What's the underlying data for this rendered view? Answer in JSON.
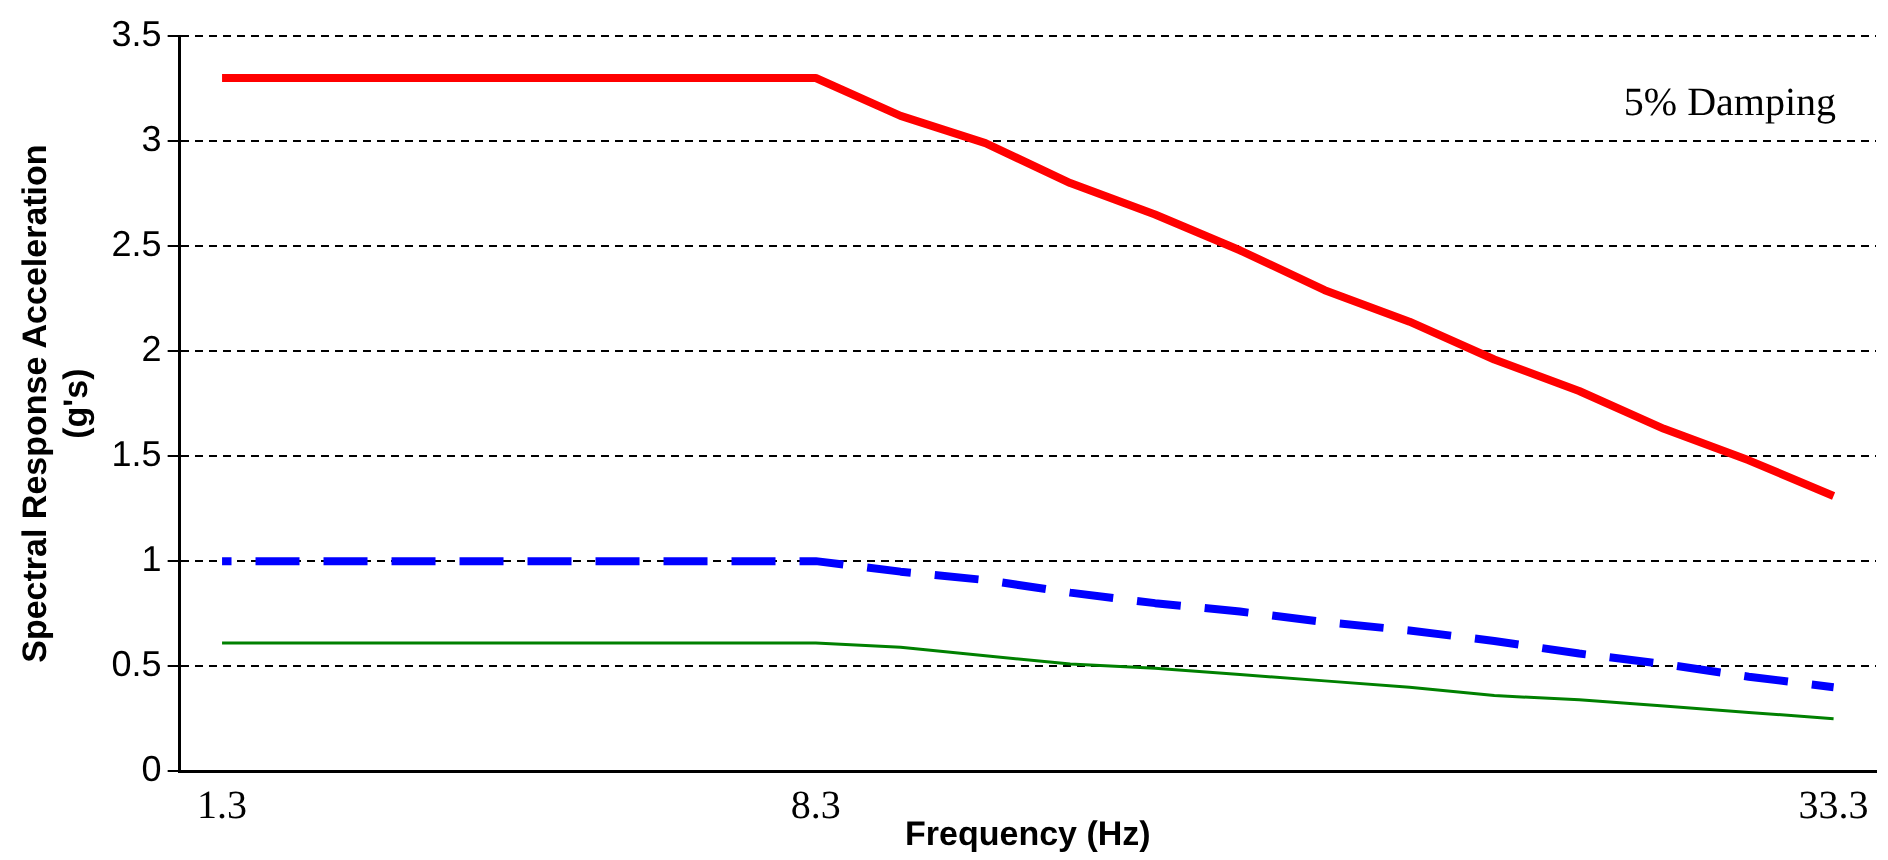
{
  "chart_data": {
    "type": "line",
    "xlabel": "Frequency (Hz)",
    "ylabel": "Spectral Response Acceleration\n(g's)",
    "categories": [
      "1.3",
      null,
      null,
      null,
      null,
      null,
      null,
      "8.3",
      null,
      null,
      null,
      null,
      null,
      null,
      null,
      null,
      null,
      null,
      null,
      "33.3"
    ],
    "series": [
      {
        "color": "#ff0000",
        "line_style": "solid",
        "values": [
          3.3,
          3.3,
          3.3,
          3.3,
          3.3,
          3.3,
          3.3,
          3.3,
          3.12,
          2.99,
          2.8,
          2.65,
          2.48,
          2.29,
          2.14,
          1.96,
          1.81,
          1.63,
          1.48,
          1.31
        ]
      },
      {
        "color": "#0000ff",
        "line_style": "dashed",
        "values": [
          1,
          1,
          1,
          1,
          1,
          1,
          1,
          1,
          0.95,
          0.91,
          0.85,
          0.8,
          0.76,
          0.71,
          0.67,
          0.62,
          0.56,
          0.51,
          0.45,
          0.4
        ]
      },
      {
        "color": "#008000",
        "line_style": "solid",
        "values": [
          0.61,
          0.61,
          0.61,
          0.61,
          0.61,
          0.61,
          0.61,
          0.61,
          0.59,
          0.55,
          0.51,
          0.49,
          0.46,
          0.43,
          0.4,
          0.36,
          0.34,
          0.31,
          0.28,
          0.25
        ]
      }
    ],
    "ylim": [
      0,
      3.5
    ],
    "yticks": [
      0,
      0.5,
      1,
      1.5,
      2,
      2.5,
      3,
      3.5
    ],
    "grid": "y",
    "legend": false,
    "marker": "none",
    "annotations": [
      "5% Damping"
    ]
  }
}
